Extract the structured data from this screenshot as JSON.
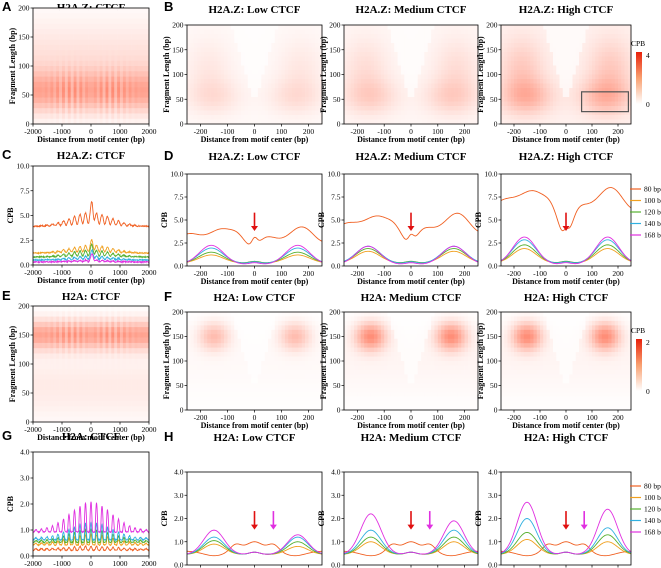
{
  "colors": {
    "s80": "#f06022",
    "s100": "#f0a020",
    "s120": "#55b030",
    "s140": "#30b0e0",
    "s168": "#e030e0",
    "arrowRed": "#e01010",
    "arrowMagenta": "#e030e0",
    "heatHigh": "#e8200a",
    "heatLow": "#ffffff"
  },
  "chart_data": [
    {
      "id": "A",
      "type": "heatmap",
      "panel_label": "A",
      "title": "H2A.Z: CTCF",
      "xlabel": "Distance from motif center (bp)",
      "ylabel": "Fragment Length (bp)",
      "xlim": [
        -2000,
        2000
      ],
      "ylim": [
        0,
        200
      ],
      "xticks": [
        "-2000",
        "-1000",
        "0",
        "1000",
        "2000"
      ],
      "yticks": [
        "0",
        "50",
        "100",
        "150",
        "200"
      ]
    },
    {
      "id": "B1",
      "type": "heatmap",
      "panel_label": "B",
      "title": "H2A.Z: Low CTCF",
      "xlabel": "Distance from motif center (bp)",
      "ylabel": "Fragment Length (bp)",
      "xlim": [
        -250,
        250
      ],
      "ylim": [
        0,
        200
      ],
      "xticks": [
        "-200",
        "-100",
        "0",
        "100",
        "200"
      ],
      "yticks": [
        "0",
        "50",
        "100",
        "150",
        "200"
      ]
    },
    {
      "id": "B2",
      "type": "heatmap",
      "title": "H2A.Z: Medium CTCF",
      "xlabel": "Distance from motif center (bp)",
      "ylabel": "Fragment Length (bp)",
      "xlim": [
        -250,
        250
      ],
      "ylim": [
        0,
        200
      ],
      "xticks": [
        "-200",
        "-100",
        "0",
        "100",
        "200"
      ],
      "yticks": [
        "0",
        "50",
        "100",
        "150",
        "200"
      ]
    },
    {
      "id": "B3",
      "type": "heatmap",
      "title": "H2A.Z: High CTCF",
      "xlabel": "Distance from motif center (bp)",
      "ylabel": "Fragment Length (bp)",
      "xlim": [
        -250,
        250
      ],
      "ylim": [
        0,
        200
      ],
      "xticks": [
        "-200",
        "-100",
        "0",
        "100",
        "200"
      ],
      "yticks": [
        "0",
        "50",
        "100",
        "150",
        "200"
      ],
      "highlight_box": {
        "x": [
          60,
          240
        ],
        "y": [
          25,
          65
        ]
      }
    },
    {
      "id": "C",
      "type": "line",
      "panel_label": "C",
      "title": "H2A.Z: CTCF",
      "xlabel": "Distance from motif center (bp)",
      "ylabel": "CPB",
      "xlim": [
        -2000,
        2000
      ],
      "ylim": [
        0,
        10
      ],
      "xticks": [
        "-2000",
        "-1000",
        "0",
        "1000",
        "2000"
      ],
      "yticks": [
        "0.0",
        "2.5",
        "5.0",
        "7.5",
        "10.0"
      ]
    },
    {
      "id": "D1",
      "type": "line",
      "panel_label": "D",
      "title": "H2A.Z: Low CTCF",
      "xlabel": "Distance from motif center (bp)",
      "ylabel": "CPB",
      "xlim": [
        -250,
        250
      ],
      "ylim": [
        0,
        10
      ],
      "xticks": [
        "-200",
        "-100",
        "0",
        "100",
        "200"
      ],
      "yticks": [
        "0.0",
        "2.5",
        "5.0",
        "7.5",
        "10.0"
      ],
      "arrows": [
        {
          "x": 0,
          "color": "red"
        }
      ]
    },
    {
      "id": "D2",
      "type": "line",
      "title": "H2A.Z: Medium CTCF",
      "xlabel": "Distance from motif center (bp)",
      "ylabel": "CPB",
      "xlim": [
        -250,
        250
      ],
      "ylim": [
        0,
        10
      ],
      "xticks": [
        "-200",
        "-100",
        "0",
        "100",
        "200"
      ],
      "yticks": [
        "0.0",
        "2.5",
        "5.0",
        "7.5",
        "10.0"
      ],
      "arrows": [
        {
          "x": 0,
          "color": "red"
        }
      ]
    },
    {
      "id": "D3",
      "type": "line",
      "title": "H2A.Z: High CTCF",
      "xlabel": "Distance from motif center (bp)",
      "ylabel": "CPB",
      "xlim": [
        -250,
        250
      ],
      "ylim": [
        0,
        10
      ],
      "xticks": [
        "-200",
        "-100",
        "0",
        "100",
        "200"
      ],
      "yticks": [
        "0.0",
        "2.5",
        "5.0",
        "7.5",
        "10.0"
      ],
      "arrows": [
        {
          "x": 0,
          "color": "red"
        }
      ]
    },
    {
      "id": "E",
      "type": "heatmap",
      "panel_label": "E",
      "title": "H2A: CTCF",
      "xlabel": "Distance from motif center (bp)",
      "ylabel": "Fragment Length (bp)",
      "xlim": [
        -2000,
        2000
      ],
      "ylim": [
        0,
        200
      ],
      "xticks": [
        "-2000",
        "-1000",
        "0",
        "1000",
        "2000"
      ],
      "yticks": [
        "0",
        "50",
        "100",
        "150",
        "200"
      ]
    },
    {
      "id": "F1",
      "type": "heatmap",
      "panel_label": "F",
      "title": "H2A: Low CTCF",
      "xlabel": "Distance from motif center (bp)",
      "ylabel": "Fragment Length (bp)",
      "xlim": [
        -250,
        250
      ],
      "ylim": [
        0,
        200
      ],
      "xticks": [
        "-200",
        "-100",
        "0",
        "100",
        "200"
      ],
      "yticks": [
        "0",
        "50",
        "100",
        "150",
        "200"
      ]
    },
    {
      "id": "F2",
      "type": "heatmap",
      "title": "H2A: Medium CTCF",
      "xlabel": "Distance from motif center (bp)",
      "ylabel": "Fragment Length (bp)",
      "xlim": [
        -250,
        250
      ],
      "ylim": [
        0,
        200
      ],
      "xticks": [
        "-200",
        "-100",
        "0",
        "100",
        "200"
      ],
      "yticks": [
        "0",
        "50",
        "100",
        "150",
        "200"
      ]
    },
    {
      "id": "F3",
      "type": "heatmap",
      "title": "H2A: High CTCF",
      "xlabel": "Distance from motif center (bp)",
      "ylabel": "Fragment Length (bp)",
      "xlim": [
        -250,
        250
      ],
      "ylim": [
        0,
        200
      ],
      "xticks": [
        "-200",
        "-100",
        "0",
        "100",
        "200"
      ],
      "yticks": [
        "0",
        "50",
        "100",
        "150",
        "200"
      ]
    },
    {
      "id": "G",
      "type": "line",
      "panel_label": "G",
      "title": "H2A: CTCF",
      "xlabel": "Distance from motif center (bp)",
      "ylabel": "CPB",
      "xlim": [
        -2000,
        2000
      ],
      "ylim": [
        0,
        4
      ],
      "xticks": [
        "-2000",
        "-1000",
        "0",
        "1000",
        "2000"
      ],
      "yticks": [
        "0.0",
        "1.0",
        "2.0",
        "3.0",
        "4.0"
      ]
    },
    {
      "id": "H1",
      "type": "line",
      "panel_label": "H",
      "title": "H2A: Low CTCF",
      "xlabel": "Distance from motif center (bp)",
      "ylabel": "CPB",
      "xlim": [
        -250,
        250
      ],
      "ylim": [
        0,
        4
      ],
      "xticks": [
        "-200",
        "-100",
        "0",
        "100",
        "200"
      ],
      "yticks": [
        "0.0",
        "1.0",
        "2.0",
        "3.0",
        "4.0"
      ],
      "arrows": [
        {
          "x": 0,
          "color": "red"
        },
        {
          "x": 70,
          "color": "magenta"
        }
      ]
    },
    {
      "id": "H2",
      "type": "line",
      "title": "H2A: Medium CTCF",
      "xlabel": "Distance from motif center (bp)",
      "ylabel": "CPB",
      "xlim": [
        -250,
        250
      ],
      "ylim": [
        0,
        4
      ],
      "xticks": [
        "-200",
        "-100",
        "0",
        "100",
        "200"
      ],
      "yticks": [
        "0.0",
        "1.0",
        "2.0",
        "3.0",
        "4.0"
      ],
      "arrows": [
        {
          "x": 0,
          "color": "red"
        },
        {
          "x": 70,
          "color": "magenta"
        }
      ]
    },
    {
      "id": "H3",
      "type": "line",
      "title": "H2A: High CTCF",
      "xlabel": "Distance from motif center (bp)",
      "ylabel": "CPB",
      "xlim": [
        -250,
        250
      ],
      "ylim": [
        0,
        4
      ],
      "xticks": [
        "-200",
        "-100",
        "0",
        "100",
        "200"
      ],
      "yticks": [
        "0.0",
        "1.0",
        "2.0",
        "3.0",
        "4.0"
      ],
      "arrows": [
        {
          "x": 0,
          "color": "red"
        },
        {
          "x": 70,
          "color": "magenta"
        }
      ]
    }
  ],
  "colorbar_top": {
    "title": "CPB",
    "max": "4",
    "min": "0"
  },
  "colorbar_bottom": {
    "title": "CPB",
    "max": "2",
    "min": "0"
  },
  "legend_top": [
    "80 bp",
    "100 bp",
    "120 bp",
    "140 bp",
    "168 bp"
  ],
  "legend_bottom": [
    "80 bp",
    "100 bp",
    "120 bp",
    "140 bp",
    "168 bp"
  ]
}
